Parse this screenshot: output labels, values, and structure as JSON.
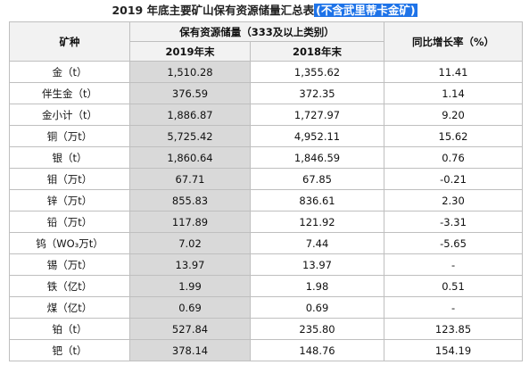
{
  "header": {
    "title": "2019 年底主要矿山保有资源储量汇总表",
    "title_note": "(不含武里蒂卡金矿)"
  },
  "table": {
    "columns": {
      "mineral": "矿种",
      "reserves": "保有资源储量（333及以上类别）",
      "growth": "同比增长率（%）",
      "y2019": "2019年末",
      "y2018": "2018年末"
    },
    "rows": [
      [
        "金（t）",
        "1,510.28",
        "1,355.62",
        "11.41"
      ],
      [
        "伴生金（t）",
        "376.59",
        "372.35",
        "1.14"
      ],
      [
        "金小计（t）",
        "1,886.87",
        "1,727.97",
        "9.20"
      ],
      [
        "铜（万t）",
        "5,725.42",
        "4,952.11",
        "15.62"
      ],
      [
        "银（t）",
        "1,860.64",
        "1,846.59",
        "0.76"
      ],
      [
        "钼（万t）",
        "67.71",
        "67.85",
        "-0.21"
      ],
      [
        "锌（万t）",
        "855.83",
        "836.61",
        "2.30"
      ],
      [
        "铅（万t）",
        "117.89",
        "121.92",
        "-3.31"
      ],
      [
        "钨（WO₃万t）",
        "7.02",
        "7.44",
        "-5.65"
      ],
      [
        "锡（万t）",
        "13.97",
        "13.97",
        "-"
      ],
      [
        "铁（亿t）",
        "1.99",
        "1.98",
        "0.51"
      ],
      [
        "煤（亿t）",
        "0.69",
        "0.69",
        "-"
      ],
      [
        "铂（t）",
        "527.84",
        "235.80",
        "123.85"
      ],
      [
        "钯（t）",
        "378.14",
        "148.76",
        "154.19"
      ]
    ]
  }
}
